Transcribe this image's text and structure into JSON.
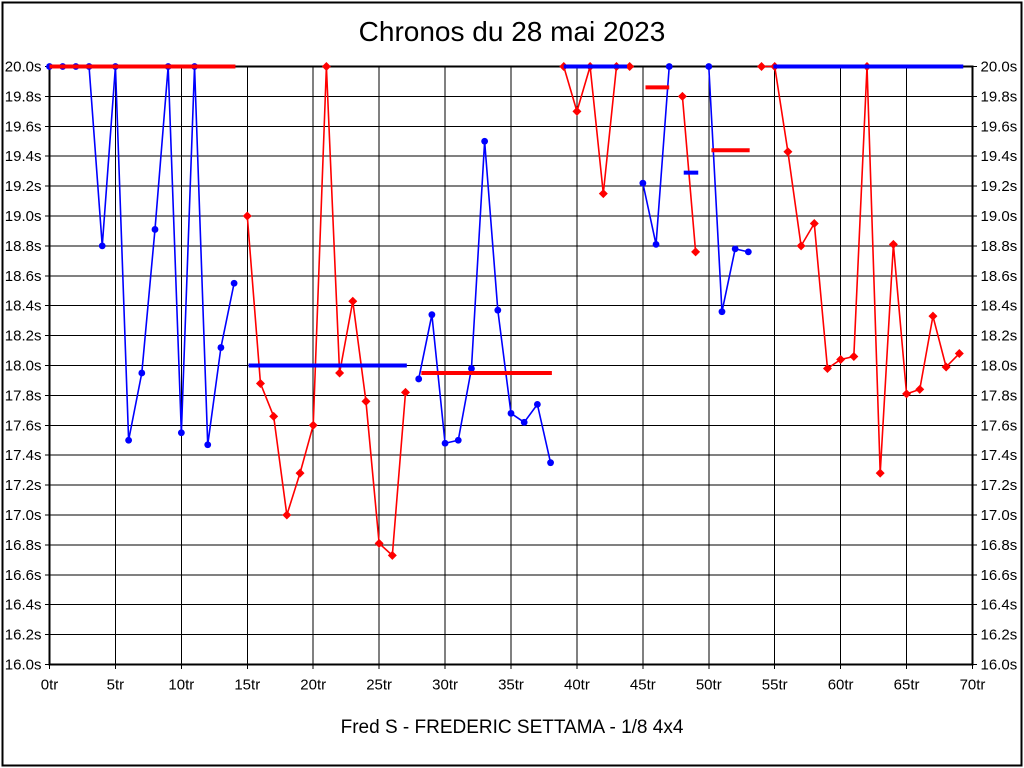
{
  "title": "Chronos du 28 mai 2023",
  "footer": "Fred S - FREDERIC SETTAMA - 1/8 4x4",
  "colors": {
    "blue": "#0000ff",
    "red": "#ff0000",
    "grid": "#000000",
    "text": "#000000",
    "background": "#ffffff"
  },
  "chart_data": {
    "type": "line",
    "title": "Chronos du 28 mai 2023",
    "subtitle": "Fred S - FREDERIC SETTAMA - 1/8 4x4",
    "xlabel": "",
    "ylabel": "",
    "x_suffix": "tr",
    "y_suffix": "s",
    "xlim": [
      0,
      70
    ],
    "ylim": [
      16.0,
      20.0
    ],
    "grid": true,
    "legend_position": "none",
    "x_ticks": [
      0,
      5,
      10,
      15,
      20,
      25,
      30,
      35,
      40,
      45,
      50,
      55,
      60,
      65,
      70
    ],
    "y_ticks": [
      20.0,
      19.8,
      19.6,
      19.4,
      19.2,
      19.0,
      18.8,
      18.6,
      18.4,
      18.2,
      18.0,
      17.8,
      17.6,
      17.4,
      17.2,
      17.0,
      16.8,
      16.6,
      16.4,
      16.2,
      16.0
    ],
    "series": [
      {
        "name": "blue-laps",
        "color": "#0000ff",
        "marker": "circle",
        "segments": [
          [
            [
              0,
              20.0
            ],
            [
              1,
              20.0
            ],
            [
              2,
              20.0
            ],
            [
              3,
              20.0
            ],
            [
              4,
              18.8
            ],
            [
              5,
              20.0
            ],
            [
              6,
              17.5
            ],
            [
              7,
              17.95
            ],
            [
              8,
              18.91
            ],
            [
              9,
              20.0
            ],
            [
              10,
              17.55
            ],
            [
              11,
              20.0
            ],
            [
              12,
              17.47
            ],
            [
              13,
              18.12
            ],
            [
              14,
              18.55
            ]
          ],
          [
            [
              28,
              17.91
            ],
            [
              29,
              18.34
            ],
            [
              30,
              17.48
            ],
            [
              31,
              17.5
            ],
            [
              32,
              17.98
            ],
            [
              33,
              19.5
            ],
            [
              34,
              18.37
            ],
            [
              35,
              17.68
            ],
            [
              36,
              17.62
            ],
            [
              37,
              17.74
            ],
            [
              38,
              17.35
            ]
          ],
          [
            [
              45,
              19.22
            ],
            [
              46,
              18.81
            ],
            [
              47,
              20.0
            ]
          ],
          [
            [
              50,
              20.0
            ],
            [
              51,
              18.36
            ],
            [
              52,
              18.78
            ],
            [
              53,
              18.76
            ]
          ]
        ]
      },
      {
        "name": "red-laps",
        "color": "#ff0000",
        "marker": "diamond",
        "segments": [
          [
            [
              15,
              19.0
            ],
            [
              16,
              17.88
            ],
            [
              17,
              17.66
            ],
            [
              18,
              17.0
            ],
            [
              19,
              17.28
            ],
            [
              20,
              17.6
            ],
            [
              21,
              20.0
            ],
            [
              22,
              17.95
            ],
            [
              23,
              18.43
            ],
            [
              24,
              17.76
            ],
            [
              25,
              16.81
            ],
            [
              26,
              16.73
            ],
            [
              27,
              17.82
            ]
          ],
          [
            [
              39,
              20.0
            ],
            [
              40,
              19.7
            ],
            [
              41,
              20.0
            ],
            [
              42,
              19.15
            ],
            [
              43,
              20.0
            ],
            [
              44,
              20.0
            ]
          ],
          [
            [
              48,
              19.8
            ],
            [
              49,
              18.76
            ]
          ],
          [
            [
              54,
              20.0
            ],
            [
              55,
              20.0
            ],
            [
              56,
              19.43
            ],
            [
              57,
              18.8
            ],
            [
              58,
              18.95
            ],
            [
              59,
              17.98
            ],
            [
              60,
              18.04
            ],
            [
              61,
              18.06
            ],
            [
              62,
              20.0
            ],
            [
              63,
              17.28
            ],
            [
              64,
              18.81
            ],
            [
              65,
              17.81
            ],
            [
              66,
              17.84
            ],
            [
              67,
              18.33
            ],
            [
              68,
              17.99
            ],
            [
              69,
              18.08
            ]
          ]
        ]
      }
    ],
    "reference_lines": [
      {
        "name": "avg-red-stint1",
        "color": "#ff0000",
        "y": 20.0,
        "x1": 0.0,
        "x2": 14.1
      },
      {
        "name": "avg-blue-stint1",
        "color": "#0000ff",
        "y": 18.0,
        "x1": 15.1,
        "x2": 27.1
      },
      {
        "name": "avg-red-stint2",
        "color": "#ff0000",
        "y": 17.95,
        "x1": 28.2,
        "x2": 38.1
      },
      {
        "name": "avg-blue-stint2",
        "color": "#0000ff",
        "y": 20.0,
        "x1": 39.0,
        "x2": 43.8
      },
      {
        "name": "avg-red-stint3",
        "color": "#ff0000",
        "y": 19.86,
        "x1": 45.2,
        "x2": 47.0
      },
      {
        "name": "avg-blue-stint3",
        "color": "#0000ff",
        "y": 19.29,
        "x1": 48.1,
        "x2": 49.2
      },
      {
        "name": "avg-red-stint4",
        "color": "#ff0000",
        "y": 19.44,
        "x1": 50.2,
        "x2": 53.1
      },
      {
        "name": "avg-blue-stint4",
        "color": "#0000ff",
        "y": 20.0,
        "x1": 54.9,
        "x2": 69.3
      }
    ]
  }
}
